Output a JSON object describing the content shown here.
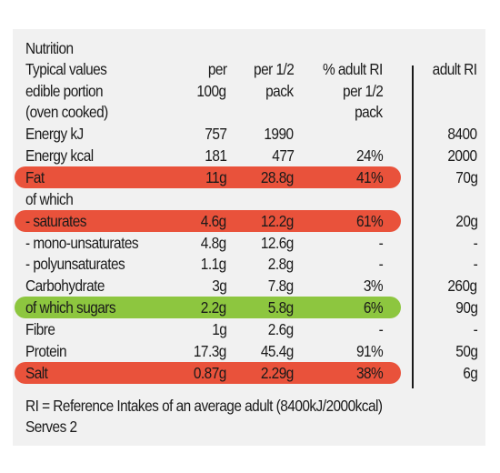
{
  "title": "Nutrition",
  "header": {
    "col1": [
      "Typical values",
      "edible portion",
      "(oven cooked)"
    ],
    "per100": [
      "per",
      "100g"
    ],
    "perhalf": [
      "per 1/2",
      "pack"
    ],
    "ri_pct": [
      "% adult RI",
      "per 1/2",
      "pack"
    ],
    "adult_ri": "adult RI"
  },
  "rows": [
    {
      "label": "Energy kJ",
      "per100": "757",
      "perhalf": "1990",
      "ri_pct": "",
      "adult_ri": "8400",
      "highlight": ""
    },
    {
      "label": "Energy kcal",
      "per100": "181",
      "perhalf": "477",
      "ri_pct": "24%",
      "adult_ri": "2000",
      "highlight": ""
    },
    {
      "label": "Fat",
      "per100": "11g",
      "perhalf": "28.8g",
      "ri_pct": "41%",
      "adult_ri": "70g",
      "highlight": "#e9523b"
    },
    {
      "label": "of which",
      "per100": "",
      "perhalf": "",
      "ri_pct": "",
      "adult_ri": "",
      "highlight": ""
    },
    {
      "label": "- saturates",
      "per100": "4.6g",
      "perhalf": "12.2g",
      "ri_pct": "61%",
      "adult_ri": "20g",
      "highlight": "#e9523b"
    },
    {
      "label": "- mono-unsaturates",
      "per100": "4.8g",
      "perhalf": "12.6g",
      "ri_pct": "-",
      "adult_ri": "-",
      "highlight": ""
    },
    {
      "label": "- polyunsaturates",
      "per100": "1.1g",
      "perhalf": "2.8g",
      "ri_pct": "-",
      "adult_ri": "-",
      "highlight": ""
    },
    {
      "label": "Carbohydrate",
      "per100": "3g",
      "perhalf": "7.8g",
      "ri_pct": "3%",
      "adult_ri": "260g",
      "highlight": ""
    },
    {
      "label": "of which sugars",
      "per100": "2.2g",
      "perhalf": "5.8g",
      "ri_pct": "6%",
      "adult_ri": "90g",
      "highlight": "#8dc63f"
    },
    {
      "label": "Fibre",
      "per100": "1g",
      "perhalf": "2.6g",
      "ri_pct": "-",
      "adult_ri": "-",
      "highlight": ""
    },
    {
      "label": "Protein",
      "per100": "17.3g",
      "perhalf": "45.4g",
      "ri_pct": "91%",
      "adult_ri": "50g",
      "highlight": ""
    },
    {
      "label": "Salt",
      "per100": "0.87g",
      "perhalf": "2.29g",
      "ri_pct": "38%",
      "adult_ri": "6g",
      "highlight": "#e9523b"
    }
  ],
  "footer": [
    "RI = Reference Intakes of an average adult (8400kJ/2000kcal)",
    "Serves 2"
  ]
}
